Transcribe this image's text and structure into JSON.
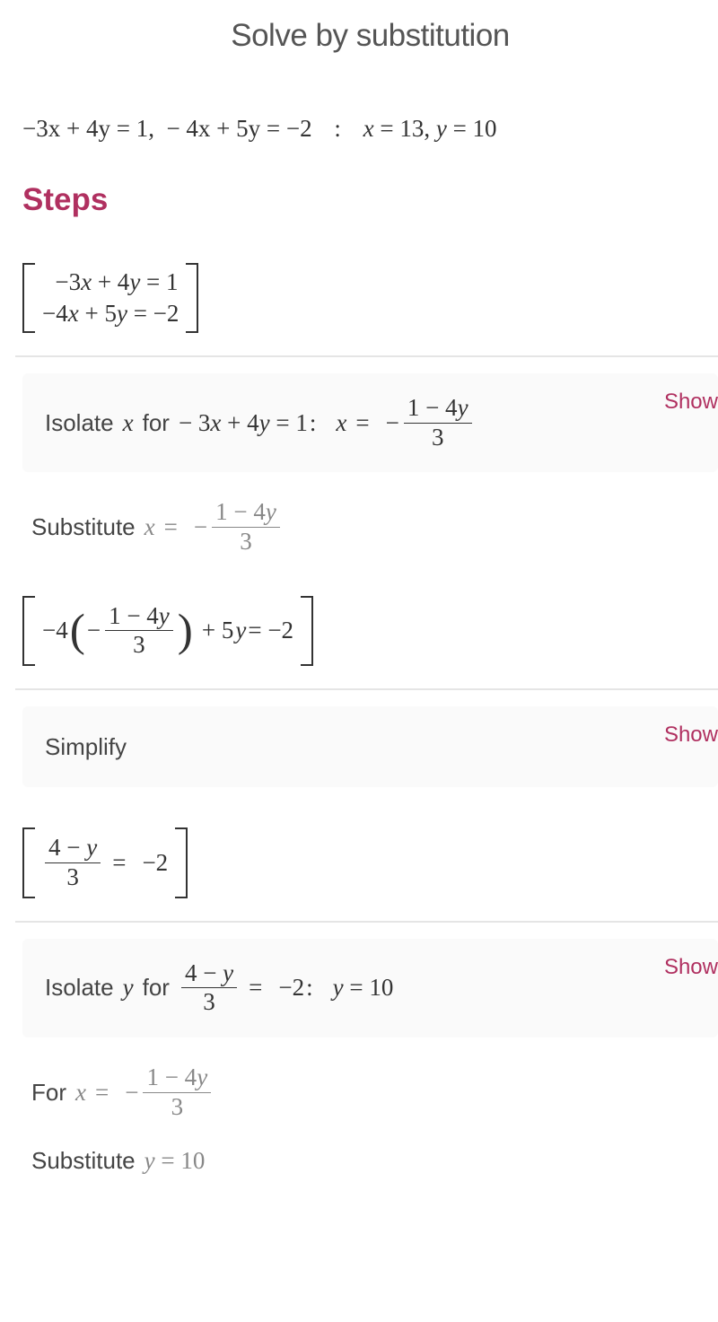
{
  "title": "Solve by substitution",
  "problem": {
    "eq1": "−3x + 4y = 1",
    "eq2": "− 4x + 5y =  −2",
    "sep": ":",
    "answer": "x = 13, y = 10"
  },
  "steps_label": "Steps",
  "system": {
    "row1": "−3x + 4y = 1",
    "row2": "−4x + 5y =  −2"
  },
  "step_isolate_x": {
    "prefix": "Isolate ",
    "var": "x",
    "mid": " for ",
    "eq": "− 3x + 4y = 1",
    "colon": ":",
    "result_pre": "x =  −",
    "frac_num": "1 − 4y",
    "frac_den": "3",
    "show": "Show"
  },
  "substitute_x": {
    "prefix": "Substitute ",
    "eq_pre": "x =  −",
    "frac_num": "1 − 4y",
    "frac_den": "3"
  },
  "sub_system": {
    "lead": "−4",
    "inner_pre": "−",
    "inner_num": "1 − 4y",
    "inner_den": "3",
    "trail": " + 5y =  −2"
  },
  "step_simplify": {
    "label": "Simplify",
    "show": "Show"
  },
  "simpl_system": {
    "num": "4 − y",
    "den": "3",
    "rhs": " =  −2"
  },
  "step_isolate_y": {
    "prefix": "Isolate ",
    "var": "y",
    "mid": " for ",
    "frac_num": "4 − y",
    "frac_den": "3",
    "rhs": " =  −2",
    "colon": ":",
    "result": "y = 10",
    "show": "Show"
  },
  "for_x": {
    "prefix": "For ",
    "eq_pre": "x =  −",
    "frac_num": "1 − 4y",
    "frac_den": "3"
  },
  "substitute_y": {
    "prefix": "Substitute ",
    "eq": "y = 10"
  },
  "colors": {
    "accent": "#b03060",
    "muted": "#888",
    "text": "#333",
    "box_bg": "#fafafa",
    "hr": "#e5e5e5"
  }
}
